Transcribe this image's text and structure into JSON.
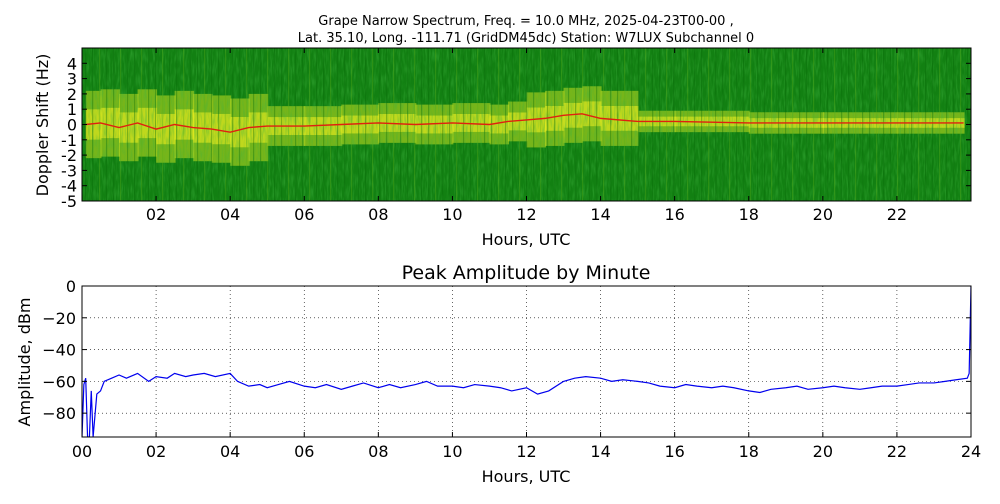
{
  "title_line1": "Grape Narrow Spectrum, Freq. = 10.0 MHz, 2025-04-23T00-00 ,",
  "title_line2": "Lat.  35.10, Long. -111.71 (GridDM45dc) Station: W7LUX Subchannel 0",
  "colors": {
    "spectrogram_background": "#128012",
    "spectrogram_hot": "#f0f020",
    "spectrogram_peak": "#e02010",
    "amplitude_line": "#0000ee",
    "grid": "#000000"
  },
  "chart_data": [
    {
      "type": "heatmap",
      "title": "",
      "xlabel": "Hours, UTC",
      "ylabel": "Doppler Shift (Hz)",
      "xlim": [
        0,
        24
      ],
      "ylim": [
        -5,
        5
      ],
      "x_ticks": [
        2,
        4,
        6,
        8,
        10,
        12,
        14,
        16,
        18,
        20,
        22
      ],
      "x_tick_labels": [
        "02",
        "04",
        "06",
        "08",
        "10",
        "12",
        "14",
        "16",
        "18",
        "20",
        "22"
      ],
      "y_ticks": [
        -5,
        -4,
        -3,
        -2,
        -1,
        0,
        1,
        2,
        3,
        4
      ],
      "y_tick_labels": [
        "-5",
        "-4",
        "-3",
        "-2",
        "-1",
        "0",
        "1",
        "2",
        "3",
        "4"
      ],
      "colormap": "green-yellow-red",
      "peak_doppler_trace": {
        "x": [
          0.1,
          0.5,
          1.0,
          1.5,
          2.0,
          2.5,
          3.0,
          3.5,
          4.0,
          4.5,
          5.0,
          6.0,
          7.0,
          8.0,
          9.0,
          10.0,
          11.0,
          11.5,
          12.0,
          12.5,
          13.0,
          13.5,
          14.0,
          15.0,
          16.0,
          18.0,
          20.0,
          22.0,
          23.8
        ],
        "y": [
          0.0,
          0.1,
          -0.2,
          0.1,
          -0.3,
          0.0,
          -0.2,
          -0.3,
          -0.5,
          -0.2,
          -0.1,
          -0.1,
          0.0,
          0.1,
          0.0,
          0.1,
          0.0,
          0.2,
          0.3,
          0.4,
          0.6,
          0.7,
          0.4,
          0.2,
          0.2,
          0.1,
          0.1,
          0.1,
          0.1
        ]
      }
    },
    {
      "type": "line",
      "title": "Peak Amplitude by Minute",
      "xlabel": "Hours, UTC",
      "ylabel": "Amplitude, dBm",
      "xlim": [
        0,
        24
      ],
      "ylim": [
        -95,
        0
      ],
      "grid": true,
      "x_ticks": [
        0,
        2,
        4,
        6,
        8,
        10,
        12,
        14,
        16,
        18,
        20,
        22,
        24
      ],
      "x_tick_labels": [
        "00",
        "02",
        "04",
        "06",
        "08",
        "10",
        "12",
        "14",
        "16",
        "18",
        "20",
        "22",
        "24"
      ],
      "y_ticks": [
        0,
        -20,
        -40,
        -60,
        -80
      ],
      "y_tick_labels": [
        "0",
        "−20",
        "−40",
        "−60",
        "−80"
      ],
      "series": [
        {
          "x": [
            0.0,
            0.05,
            0.1,
            0.15,
            0.2,
            0.25,
            0.3,
            0.4,
            0.5,
            0.6,
            0.8,
            1.0,
            1.2,
            1.5,
            1.8,
            2.0,
            2.3,
            2.5,
            2.8,
            3.0,
            3.3,
            3.6,
            4.0,
            4.2,
            4.5,
            4.8,
            5.0,
            5.3,
            5.6,
            6.0,
            6.3,
            6.6,
            7.0,
            7.3,
            7.6,
            8.0,
            8.3,
            8.6,
            9.0,
            9.3,
            9.6,
            10.0,
            10.3,
            10.6,
            11.0,
            11.3,
            11.6,
            12.0,
            12.3,
            12.6,
            13.0,
            13.3,
            13.6,
            14.0,
            14.3,
            14.6,
            15.0,
            15.3,
            15.6,
            16.0,
            16.3,
            16.6,
            17.0,
            17.3,
            17.6,
            18.0,
            18.3,
            18.6,
            19.0,
            19.3,
            19.6,
            20.0,
            20.3,
            20.6,
            21.0,
            21.3,
            21.6,
            22.0,
            22.3,
            22.6,
            23.0,
            23.3,
            23.6,
            23.9,
            23.95,
            24.0
          ],
          "y": [
            -95,
            -62,
            -58,
            -95,
            -95,
            -66,
            -95,
            -68,
            -66,
            -60,
            -58,
            -56,
            -58,
            -55,
            -60,
            -57,
            -58,
            -55,
            -57,
            -56,
            -55,
            -57,
            -55,
            -60,
            -63,
            -62,
            -64,
            -62,
            -60,
            -63,
            -64,
            -62,
            -65,
            -63,
            -61,
            -64,
            -62,
            -64,
            -62,
            -60,
            -63,
            -63,
            -64,
            -62,
            -63,
            -64,
            -66,
            -64,
            -68,
            -66,
            -60,
            -58,
            -57,
            -58,
            -60,
            -59,
            -60,
            -61,
            -63,
            -64,
            -62,
            -63,
            -64,
            -63,
            -64,
            -66,
            -67,
            -65,
            -64,
            -63,
            -65,
            -64,
            -63,
            -64,
            -65,
            -64,
            -63,
            -63,
            -62,
            -61,
            -61,
            -60,
            -59,
            -58,
            -55,
            0
          ]
        }
      ]
    }
  ]
}
